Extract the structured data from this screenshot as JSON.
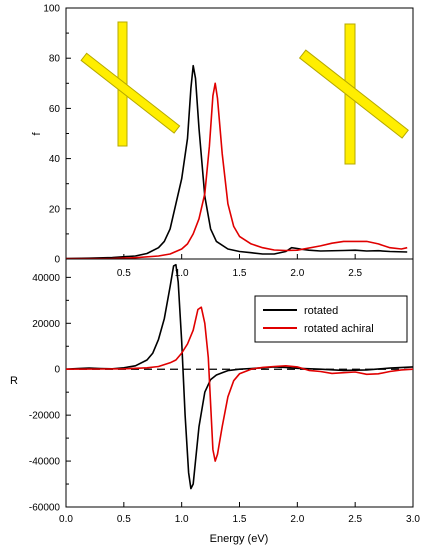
{
  "chart_data": [
    {
      "type": "line",
      "ylabel": "f",
      "xlim": [
        0,
        3.0
      ],
      "ylim": [
        0,
        100
      ],
      "x_ticks": [
        0.5,
        1.0,
        1.5,
        2.0,
        2.5
      ],
      "x_tick_labels": [
        "0.5",
        "1.0",
        "1.5",
        "2.0",
        "2.5"
      ],
      "y_ticks": [
        0,
        20,
        40,
        60,
        80,
        100
      ],
      "y_tick_labels": [
        "0",
        "20",
        "40",
        "60",
        "80",
        "100"
      ],
      "grid": false,
      "series": [
        {
          "color": "#000000",
          "x": [
            0.0,
            0.2,
            0.4,
            0.6,
            0.7,
            0.8,
            0.85,
            0.9,
            0.95,
            1.0,
            1.05,
            1.08,
            1.1,
            1.12,
            1.15,
            1.2,
            1.25,
            1.3,
            1.4,
            1.5,
            1.6,
            1.7,
            1.8,
            1.9,
            1.95,
            2.0,
            2.05,
            2.1,
            2.2,
            2.4,
            2.5,
            2.6,
            2.7,
            2.8,
            2.95
          ],
          "y": [
            0.2,
            0.3,
            0.6,
            1.2,
            2.2,
            4.5,
            7,
            12,
            22,
            32,
            48,
            68,
            77,
            72,
            52,
            25,
            12,
            7,
            4,
            3,
            2.5,
            2,
            2,
            3,
            4.5,
            4.2,
            3.8,
            3.5,
            3.2,
            3.4,
            3.5,
            3.2,
            3.3,
            3,
            2.8
          ]
        },
        {
          "color": "#e00000",
          "x": [
            0.0,
            0.4,
            0.6,
            0.8,
            0.9,
            1.0,
            1.05,
            1.1,
            1.15,
            1.2,
            1.24,
            1.27,
            1.29,
            1.31,
            1.35,
            1.4,
            1.45,
            1.5,
            1.6,
            1.7,
            1.8,
            1.9,
            2.0,
            2.2,
            2.3,
            2.4,
            2.5,
            2.6,
            2.7,
            2.8,
            2.9,
            2.95
          ],
          "y": [
            0.1,
            0.2,
            0.5,
            1.2,
            2,
            4,
            6,
            10,
            16,
            26,
            45,
            65,
            70,
            64,
            42,
            22,
            13,
            9,
            6,
            4.5,
            3.6,
            3.4,
            3.5,
            5.2,
            6.3,
            7,
            7,
            7,
            6,
            4.5,
            4,
            4.5
          ]
        }
      ]
    },
    {
      "type": "line",
      "xlabel": "Energy (eV)",
      "ylabel": "R",
      "xlim": [
        0.0,
        3.0
      ],
      "ylim": [
        -60000,
        48000
      ],
      "x_ticks": [
        0.0,
        0.5,
        1.0,
        1.5,
        2.0,
        2.5,
        3.0
      ],
      "x_tick_labels": [
        "0.0",
        "0.5",
        "1.0",
        "1.5",
        "2.0",
        "2.5",
        "3.0"
      ],
      "y_ticks": [
        -60000,
        -40000,
        -20000,
        0,
        20000,
        40000
      ],
      "y_tick_labels": [
        "-60000",
        "-40000",
        "-20000",
        "0",
        "20000",
        "40000"
      ],
      "grid": false,
      "legend_position": "top-right",
      "baseline": {
        "y": 0,
        "style": "dashed",
        "color": "#000000"
      },
      "series": [
        {
          "name": "rotated",
          "color": "#000000",
          "x": [
            0.0,
            0.1,
            0.2,
            0.3,
            0.4,
            0.5,
            0.6,
            0.7,
            0.75,
            0.8,
            0.85,
            0.9,
            0.93,
            0.95,
            0.97,
            1.0,
            1.03,
            1.06,
            1.08,
            1.1,
            1.12,
            1.15,
            1.2,
            1.25,
            1.3,
            1.35,
            1.4,
            1.5,
            1.6,
            1.7,
            1.8,
            1.9,
            2.0,
            2.2,
            2.4,
            2.6,
            2.8,
            3.0
          ],
          "y": [
            0,
            300,
            500,
            300,
            200,
            600,
            1500,
            4000,
            7000,
            13000,
            22000,
            36000,
            45000,
            45500,
            38000,
            12000,
            -20000,
            -45000,
            -52000,
            -50000,
            -40000,
            -25000,
            -10000,
            -4500,
            -2500,
            -1500,
            -600,
            0,
            300,
            600,
            1000,
            800,
            400,
            0,
            -500,
            -300,
            500,
            1000
          ]
        },
        {
          "name": "rotated achiral",
          "color": "#e00000",
          "x": [
            0.0,
            0.3,
            0.5,
            0.7,
            0.8,
            0.9,
            0.95,
            1.0,
            1.05,
            1.1,
            1.14,
            1.17,
            1.2,
            1.23,
            1.25,
            1.27,
            1.29,
            1.31,
            1.35,
            1.4,
            1.45,
            1.5,
            1.6,
            1.7,
            1.8,
            1.9,
            2.0,
            2.1,
            2.2,
            2.3,
            2.4,
            2.5,
            2.6,
            2.7,
            2.8,
            2.9,
            3.0
          ],
          "y": [
            0,
            100,
            200,
            600,
            1200,
            2800,
            4000,
            7000,
            11000,
            17000,
            26000,
            27000,
            20000,
            5000,
            -15000,
            -35000,
            -40000,
            -37000,
            -25000,
            -12000,
            -5000,
            -2000,
            0,
            800,
            1200,
            1500,
            1000,
            -500,
            -1000,
            -1800,
            -1500,
            -1200,
            -2200,
            -2000,
            -1000,
            -300,
            0
          ]
        }
      ]
    }
  ],
  "insets": [
    {
      "name": "left-nanotube-cross",
      "color": "#ffee00"
    },
    {
      "name": "right-nanotube-cross",
      "color": "#ffee00"
    }
  ]
}
